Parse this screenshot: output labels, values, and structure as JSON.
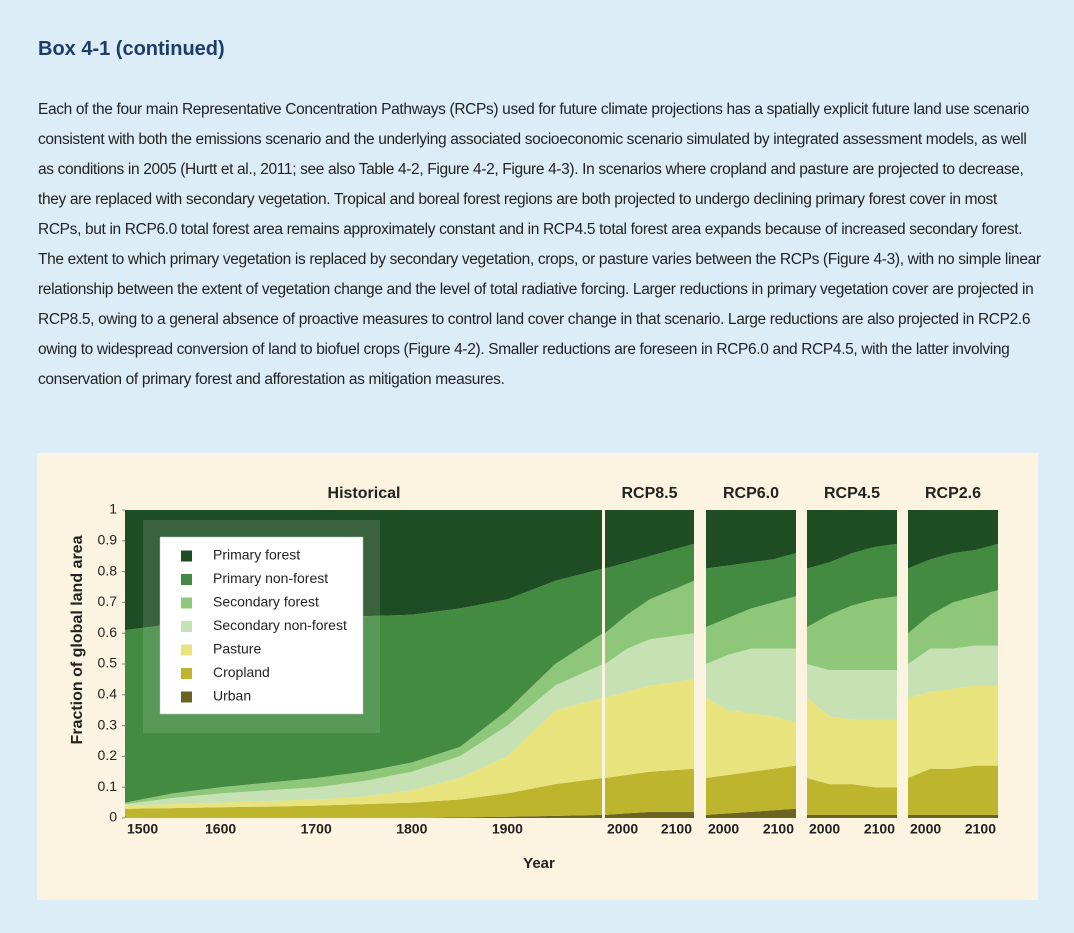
{
  "header": {
    "title": "Box 4-1 (continued)"
  },
  "paragraph": "Each of the four main Representative Concentration Pathways (RCPs) used for future climate projections has a spatially explicit future land use scenario consistent with both the emissions scenario and the underlying associated socioeconomic scenario simulated by integrated assessment models, as well as conditions in 2005 (Hurtt et al., 2011; see also Table 4-2, Figure 4-2, Figure 4-3). In scenarios where cropland and pasture are projected to decrease, they are replaced with secondary vegetation. Tropical and boreal forest regions are both projected to undergo declining primary forest cover in most RCPs, but in RCP6.0 total forest area remains approximately constant and in RCP4.5 total forest area expands because of increased secondary forest. The extent to which primary vegetation is replaced by secondary vegetation, crops, or pasture varies between the RCPs (Figure 4-3), with no simple linear relationship between the extent of vegetation change and the level of total radiative forcing. Larger reductions in primary vegetation cover are projected in RCP8.5, owing to a general absence of proactive measures to control land cover change in that scenario. Large reductions are also projected in RCP2.6 owing to widespread conversion of land to biofuel crops (Figure 4-2). Smaller reductions are foreseen in RCP6.0 and RCP4.5, with the latter involving conservation of primary forest and afforestation as mitigation measures.",
  "figure": {
    "ylabel": "Fraction of global land area",
    "xlabel": "Year"
  },
  "chart_data": [
    {
      "type": "area",
      "stacked": true,
      "title": "Historical",
      "legend": "upper left",
      "x": [
        1500,
        1550,
        1600,
        1650,
        1700,
        1750,
        1800,
        1850,
        1900,
        1950,
        2000
      ],
      "xlim": [
        1500,
        2000
      ],
      "xticks": [
        1500,
        1600,
        1700,
        1800,
        1900
      ],
      "ylim": [
        0,
        1
      ],
      "yticks": [
        0,
        0.1,
        0.2,
        0.3,
        0.4,
        0.5,
        0.6,
        0.7,
        0.8,
        0.9,
        1
      ],
      "series": [
        {
          "name": "Primary forest",
          "color": "#1e4d23",
          "values": [
            0.39,
            0.37,
            0.36,
            0.355,
            0.35,
            0.345,
            0.34,
            0.32,
            0.29,
            0.23,
            0.19
          ]
        },
        {
          "name": "Primary non-forest",
          "color": "#438b41",
          "values": [
            0.56,
            0.55,
            0.54,
            0.53,
            0.52,
            0.505,
            0.48,
            0.45,
            0.36,
            0.27,
            0.21
          ]
        },
        {
          "name": "Secondary forest",
          "color": "#8fc77a",
          "values": [
            0.005,
            0.015,
            0.02,
            0.025,
            0.03,
            0.03,
            0.03,
            0.03,
            0.05,
            0.07,
            0.1
          ]
        },
        {
          "name": "Secondary non-forest",
          "color": "#c6e2b4",
          "values": [
            0.005,
            0.02,
            0.03,
            0.035,
            0.04,
            0.05,
            0.06,
            0.07,
            0.1,
            0.08,
            0.11
          ]
        },
        {
          "name": "Pasture",
          "color": "#e8e37c",
          "values": [
            0.01,
            0.013,
            0.015,
            0.018,
            0.02,
            0.025,
            0.04,
            0.07,
            0.12,
            0.24,
            0.26
          ]
        },
        {
          "name": "Cropland",
          "color": "#bdb52d",
          "values": [
            0.03,
            0.032,
            0.035,
            0.037,
            0.04,
            0.045,
            0.05,
            0.058,
            0.076,
            0.103,
            0.12
          ]
        },
        {
          "name": "Urban",
          "color": "#6b6420",
          "values": [
            0,
            0,
            0,
            0,
            0,
            0,
            0,
            0.002,
            0.004,
            0.007,
            0.01
          ]
        }
      ]
    },
    {
      "type": "area",
      "stacked": true,
      "title": "RCP8.5",
      "x": [
        2000,
        2025,
        2050,
        2075,
        2100
      ],
      "xlim": [
        2000,
        2100
      ],
      "xticks": [
        2000,
        2100
      ],
      "ylim": [
        0,
        1
      ],
      "series": [
        {
          "values": [
            0.19,
            0.17,
            0.15,
            0.13,
            0.11
          ]
        },
        {
          "values": [
            0.21,
            0.17,
            0.14,
            0.13,
            0.12
          ]
        },
        {
          "values": [
            0.1,
            0.11,
            0.13,
            0.15,
            0.17
          ]
        },
        {
          "values": [
            0.11,
            0.14,
            0.15,
            0.15,
            0.15
          ]
        },
        {
          "values": [
            0.26,
            0.27,
            0.28,
            0.285,
            0.29
          ]
        },
        {
          "values": [
            0.12,
            0.125,
            0.13,
            0.135,
            0.14
          ]
        },
        {
          "values": [
            0.01,
            0.015,
            0.02,
            0.02,
            0.02
          ]
        }
      ]
    },
    {
      "type": "area",
      "stacked": true,
      "title": "RCP6.0",
      "x": [
        2000,
        2025,
        2050,
        2075,
        2100
      ],
      "xlim": [
        2000,
        2100
      ],
      "xticks": [
        2000,
        2100
      ],
      "ylim": [
        0,
        1
      ],
      "series": [
        {
          "values": [
            0.19,
            0.18,
            0.17,
            0.16,
            0.14
          ]
        },
        {
          "values": [
            0.19,
            0.17,
            0.15,
            0.14,
            0.14
          ]
        },
        {
          "values": [
            0.12,
            0.12,
            0.13,
            0.15,
            0.17
          ]
        },
        {
          "values": [
            0.11,
            0.18,
            0.21,
            0.22,
            0.24
          ]
        },
        {
          "values": [
            0.26,
            0.21,
            0.19,
            0.17,
            0.14
          ]
        },
        {
          "values": [
            0.12,
            0.125,
            0.13,
            0.135,
            0.14
          ]
        },
        {
          "values": [
            0.01,
            0.015,
            0.02,
            0.025,
            0.03
          ]
        }
      ]
    },
    {
      "type": "area",
      "stacked": true,
      "title": "RCP4.5",
      "x": [
        2000,
        2025,
        2050,
        2075,
        2100
      ],
      "xlim": [
        2000,
        2100
      ],
      "xticks": [
        2000,
        2100
      ],
      "ylim": [
        0,
        1
      ],
      "series": [
        {
          "values": [
            0.19,
            0.17,
            0.14,
            0.12,
            0.11
          ]
        },
        {
          "values": [
            0.19,
            0.17,
            0.17,
            0.17,
            0.17
          ]
        },
        {
          "values": [
            0.12,
            0.18,
            0.21,
            0.23,
            0.24
          ]
        },
        {
          "values": [
            0.11,
            0.15,
            0.16,
            0.16,
            0.16
          ]
        },
        {
          "values": [
            0.26,
            0.22,
            0.21,
            0.22,
            0.22
          ]
        },
        {
          "values": [
            0.12,
            0.1,
            0.1,
            0.09,
            0.09
          ]
        },
        {
          "values": [
            0.01,
            0.01,
            0.01,
            0.01,
            0.01
          ]
        }
      ]
    },
    {
      "type": "area",
      "stacked": true,
      "title": "RCP2.6",
      "x": [
        2000,
        2025,
        2050,
        2075,
        2100
      ],
      "xlim": [
        2000,
        2100
      ],
      "xticks": [
        2000,
        2100
      ],
      "ylim": [
        0,
        1
      ],
      "series": [
        {
          "values": [
            0.19,
            0.16,
            0.14,
            0.13,
            0.11
          ]
        },
        {
          "values": [
            0.21,
            0.18,
            0.16,
            0.15,
            0.15
          ]
        },
        {
          "values": [
            0.1,
            0.11,
            0.15,
            0.16,
            0.18
          ]
        },
        {
          "values": [
            0.11,
            0.14,
            0.13,
            0.13,
            0.13
          ]
        },
        {
          "values": [
            0.26,
            0.25,
            0.26,
            0.26,
            0.26
          ]
        },
        {
          "values": [
            0.12,
            0.15,
            0.15,
            0.16,
            0.16
          ]
        },
        {
          "values": [
            0.01,
            0.01,
            0.01,
            0.01,
            0.01
          ]
        }
      ]
    }
  ]
}
